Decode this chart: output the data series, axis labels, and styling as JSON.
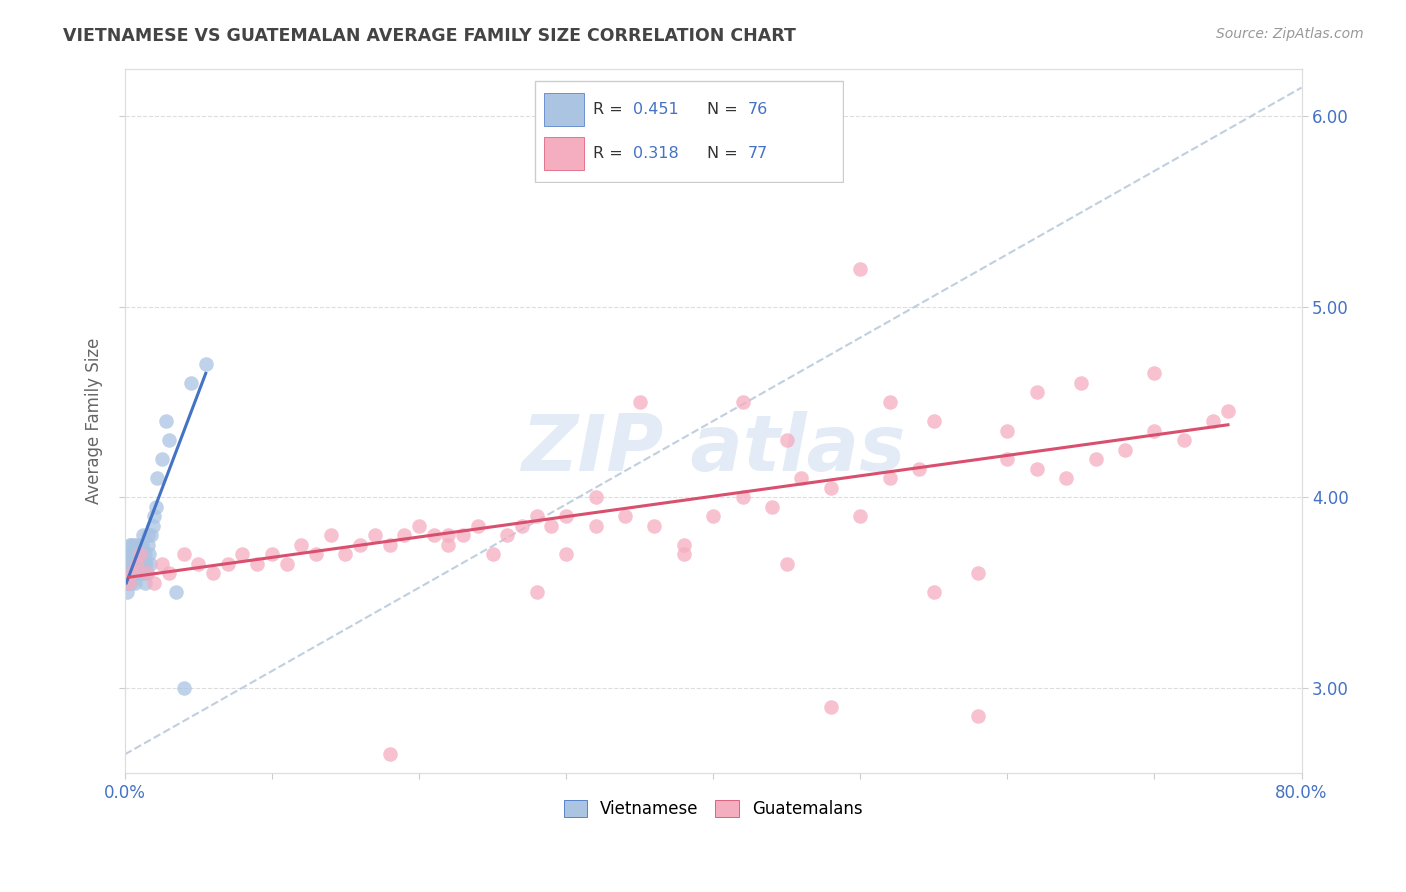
{
  "title": "VIETNAMESE VS GUATEMALAN AVERAGE FAMILY SIZE CORRELATION CHART",
  "source": "Source: ZipAtlas.com",
  "ylabel": "Average Family Size",
  "legend_vietnamese": "Vietnamese",
  "legend_guatemalans": "Guatemalans",
  "r_vietnamese": "0.451",
  "n_vietnamese": "76",
  "r_guatemalans": "0.318",
  "n_guatemalans": "77",
  "xlim": [
    0.0,
    80.0
  ],
  "ylim": [
    2.55,
    6.25
  ],
  "yticks": [
    3.0,
    4.0,
    5.0,
    6.0
  ],
  "color_vietnamese": "#aac4e2",
  "color_guatemalans": "#f5adc0",
  "color_trend_vietnamese": "#4472c4",
  "color_trend_guatemalans": "#d94f6e",
  "color_axis_text": "#4472c4",
  "background_color": "#ffffff",
  "title_color": "#444444",
  "vietnamese_x": [
    0.1,
    0.15,
    0.18,
    0.2,
    0.22,
    0.25,
    0.28,
    0.3,
    0.32,
    0.35,
    0.38,
    0.4,
    0.42,
    0.45,
    0.48,
    0.5,
    0.52,
    0.55,
    0.58,
    0.6,
    0.62,
    0.65,
    0.68,
    0.7,
    0.72,
    0.75,
    0.78,
    0.8,
    0.82,
    0.85,
    0.88,
    0.9,
    0.92,
    0.95,
    0.98,
    1.0,
    1.05,
    1.1,
    1.15,
    1.2,
    1.25,
    1.3,
    1.35,
    1.4,
    1.45,
    1.5,
    1.55,
    1.6,
    1.65,
    1.7,
    1.8,
    1.9,
    2.0,
    2.1,
    2.2,
    2.5,
    2.8,
    3.0,
    3.5,
    4.0,
    0.12,
    0.17,
    0.23,
    0.33,
    0.43,
    0.53,
    0.63,
    0.73,
    0.83,
    0.93,
    1.03,
    1.13,
    1.23,
    1.33,
    4.5,
    5.5
  ],
  "vietnamese_y": [
    3.6,
    3.5,
    3.55,
    3.7,
    3.6,
    3.65,
    3.7,
    3.55,
    3.6,
    3.75,
    3.7,
    3.65,
    3.6,
    3.55,
    3.7,
    3.6,
    3.65,
    3.7,
    3.6,
    3.75,
    3.6,
    3.7,
    3.65,
    3.6,
    3.55,
    3.7,
    3.65,
    3.6,
    3.75,
    3.7,
    3.65,
    3.6,
    3.7,
    3.65,
    3.6,
    3.7,
    3.65,
    3.6,
    3.75,
    3.7,
    3.65,
    3.6,
    3.55,
    3.7,
    3.65,
    3.6,
    3.75,
    3.8,
    3.7,
    3.65,
    3.8,
    3.85,
    3.9,
    3.95,
    4.1,
    4.2,
    4.4,
    4.3,
    3.5,
    3.0,
    3.55,
    3.6,
    3.65,
    3.7,
    3.75,
    3.7,
    3.65,
    3.6,
    3.7,
    3.65,
    3.7,
    3.75,
    3.8,
    3.65,
    4.6,
    4.7
  ],
  "guatemalan_x": [
    0.3,
    0.5,
    0.8,
    1.0,
    1.5,
    2.0,
    2.5,
    3.0,
    4.0,
    5.0,
    6.0,
    7.0,
    8.0,
    9.0,
    10.0,
    11.0,
    12.0,
    13.0,
    14.0,
    15.0,
    16.0,
    17.0,
    18.0,
    19.0,
    20.0,
    21.0,
    22.0,
    23.0,
    24.0,
    25.0,
    26.0,
    27.0,
    28.0,
    29.0,
    30.0,
    32.0,
    34.0,
    36.0,
    38.0,
    40.0,
    42.0,
    44.0,
    46.0,
    48.0,
    50.0,
    52.0,
    54.0,
    55.0,
    58.0,
    60.0,
    62.0,
    64.0,
    66.0,
    68.0,
    70.0,
    72.0,
    74.0,
    75.0,
    38.0,
    28.0,
    18.0,
    48.0,
    58.0,
    35.0,
    22.0,
    45.0,
    55.0,
    65.0,
    42.0,
    32.0,
    52.0,
    62.0,
    30.0,
    50.0,
    70.0,
    45.0,
    60.0
  ],
  "guatemalan_y": [
    3.55,
    3.6,
    3.65,
    3.7,
    3.6,
    3.55,
    3.65,
    3.6,
    3.7,
    3.65,
    3.6,
    3.65,
    3.7,
    3.65,
    3.7,
    3.65,
    3.75,
    3.7,
    3.8,
    3.7,
    3.75,
    3.8,
    3.75,
    3.8,
    3.85,
    3.8,
    3.75,
    3.8,
    3.85,
    3.7,
    3.8,
    3.85,
    3.9,
    3.85,
    3.9,
    3.85,
    3.9,
    3.85,
    3.75,
    3.9,
    4.0,
    3.95,
    4.1,
    4.05,
    3.9,
    4.1,
    4.15,
    3.5,
    3.6,
    4.2,
    4.15,
    4.1,
    4.2,
    4.25,
    4.35,
    4.3,
    4.4,
    4.45,
    3.7,
    3.5,
    2.65,
    2.9,
    2.85,
    4.5,
    3.8,
    4.3,
    4.4,
    4.6,
    4.5,
    4.0,
    4.5,
    4.55,
    3.7,
    5.2,
    4.65,
    3.65,
    4.35
  ],
  "ref_line_x": [
    0,
    80
  ],
  "ref_line_y": [
    2.65,
    6.15
  ],
  "viet_trend_x0": 0.1,
  "viet_trend_x1": 5.5,
  "viet_trend_y0": 3.55,
  "viet_trend_y1": 4.65,
  "guat_trend_x0": 0.3,
  "guat_trend_x1": 75.0,
  "guat_trend_y0": 3.58,
  "guat_trend_y1": 4.38
}
